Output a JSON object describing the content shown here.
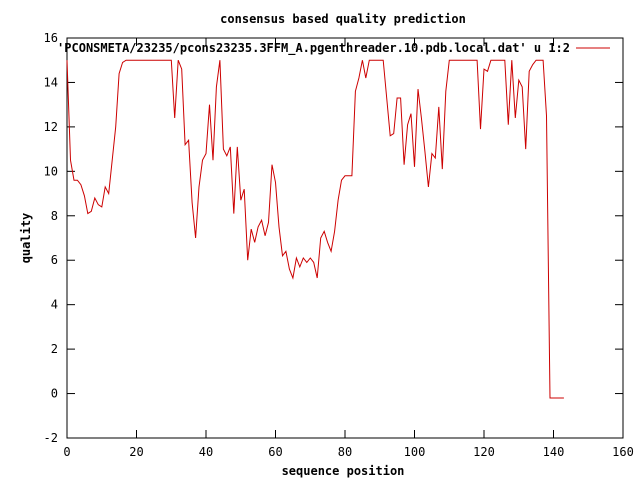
{
  "chart_data": {
    "type": "line",
    "title": "consensus based quality prediction",
    "xlabel": "sequence position",
    "ylabel": "quality",
    "xlim": [
      0,
      160
    ],
    "ylim": [
      -2,
      16
    ],
    "x_ticks": [
      0,
      20,
      40,
      60,
      80,
      100,
      120,
      140,
      160
    ],
    "y_ticks": [
      -2,
      0,
      2,
      4,
      6,
      8,
      10,
      12,
      14,
      16
    ],
    "grid": false,
    "legend_position": "top-right",
    "colors": {
      "series": "#cc0000",
      "axes": "#000000",
      "background": "#ffffff"
    },
    "series": [
      {
        "name": "'PCONSMETA/23235/pcons23235.3FFM_A.pgenthreader.10.pdb.local.dat' u 1:2",
        "x": [
          0,
          1,
          2,
          3,
          4,
          5,
          6,
          7,
          8,
          9,
          10,
          11,
          12,
          13,
          14,
          15,
          16,
          17,
          18,
          19,
          20,
          21,
          22,
          23,
          24,
          25,
          26,
          27,
          28,
          29,
          30,
          31,
          32,
          33,
          34,
          35,
          36,
          37,
          38,
          39,
          40,
          41,
          42,
          43,
          44,
          45,
          46,
          47,
          48,
          49,
          50,
          51,
          52,
          53,
          54,
          55,
          56,
          57,
          58,
          59,
          60,
          61,
          62,
          63,
          64,
          65,
          66,
          67,
          68,
          69,
          70,
          71,
          72,
          73,
          74,
          75,
          76,
          77,
          78,
          79,
          80,
          81,
          82,
          83,
          84,
          85,
          86,
          87,
          88,
          89,
          90,
          91,
          92,
          93,
          94,
          95,
          96,
          97,
          98,
          99,
          100,
          101,
          102,
          103,
          104,
          105,
          106,
          107,
          108,
          109,
          110,
          111,
          112,
          113,
          114,
          115,
          116,
          117,
          118,
          119,
          120,
          121,
          122,
          123,
          124,
          125,
          126,
          127,
          128,
          129,
          130,
          131,
          132,
          133,
          134,
          135,
          136,
          137,
          138,
          139,
          140,
          141,
          142,
          143
        ],
        "y": [
          15.0,
          10.5,
          9.6,
          9.6,
          9.4,
          8.9,
          8.1,
          8.2,
          8.8,
          8.5,
          8.4,
          9.3,
          9.0,
          10.5,
          12.0,
          14.4,
          14.9,
          15.0,
          15.0,
          15.0,
          15.0,
          15.0,
          15.0,
          15.0,
          15.0,
          15.0,
          15.0,
          15.0,
          15.0,
          15.0,
          15.0,
          12.4,
          15.0,
          14.6,
          11.2,
          11.4,
          8.6,
          7.0,
          9.3,
          10.5,
          10.8,
          13.0,
          10.5,
          13.8,
          15.0,
          11.0,
          10.7,
          11.1,
          8.1,
          11.1,
          8.7,
          9.2,
          6.0,
          7.4,
          6.8,
          7.5,
          7.8,
          7.1,
          7.7,
          10.3,
          9.5,
          7.5,
          6.2,
          6.4,
          5.6,
          5.2,
          6.1,
          5.7,
          6.1,
          5.9,
          6.1,
          5.9,
          5.2,
          7.0,
          7.3,
          6.8,
          6.4,
          7.3,
          8.7,
          9.6,
          9.8,
          9.8,
          9.8,
          13.6,
          14.2,
          15.0,
          14.2,
          15.0,
          15.0,
          15.0,
          15.0,
          15.0,
          13.3,
          11.6,
          11.7,
          13.3,
          13.3,
          10.3,
          12.1,
          12.6,
          10.2,
          13.7,
          12.4,
          10.9,
          9.3,
          10.8,
          10.6,
          12.9,
          10.1,
          13.6,
          15.0,
          15.0,
          15.0,
          15.0,
          15.0,
          15.0,
          15.0,
          15.0,
          15.0,
          11.9,
          14.6,
          14.5,
          15.0,
          15.0,
          15.0,
          15.0,
          15.0,
          12.1,
          15.0,
          12.4,
          14.1,
          13.8,
          11.0,
          14.5,
          14.8,
          15.0,
          15.0,
          15.0,
          12.5,
          -0.2,
          -0.2,
          -0.2,
          -0.2,
          -0.2
        ]
      }
    ]
  }
}
